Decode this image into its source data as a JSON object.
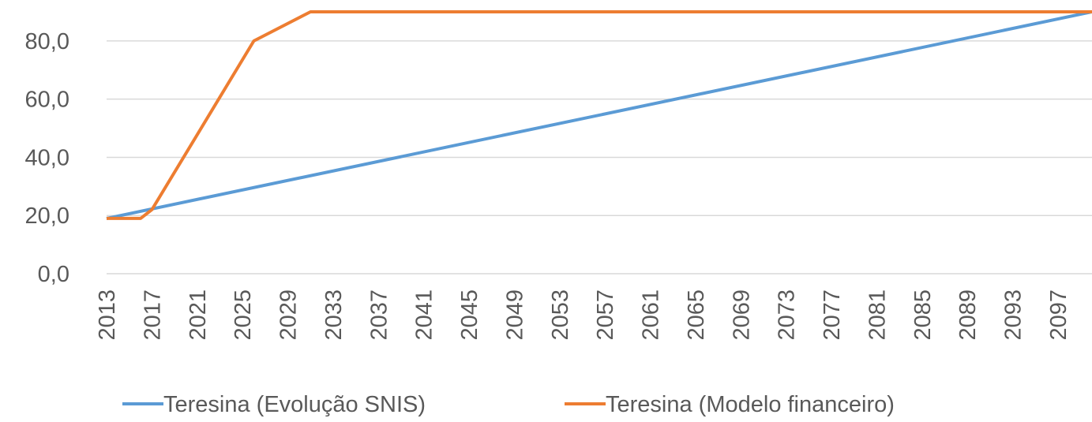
{
  "chart_data": {
    "type": "line",
    "xlim": [
      2013,
      2100
    ],
    "xticks": [
      2013,
      2017,
      2021,
      2025,
      2029,
      2033,
      2037,
      2041,
      2045,
      2049,
      2053,
      2057,
      2061,
      2065,
      2069,
      2073,
      2077,
      2081,
      2085,
      2089,
      2093,
      2097
    ],
    "ylim": [
      0,
      90
    ],
    "yticks": [
      {
        "value": 0,
        "label": "0,0"
      },
      {
        "value": 20,
        "label": "20,0"
      },
      {
        "value": 40,
        "label": "40,0"
      },
      {
        "value": 60,
        "label": "60,0"
      },
      {
        "value": 80,
        "label": "80,0"
      }
    ],
    "grid": true,
    "legend": "bottom",
    "series": [
      {
        "name": "Teresina (Evolução SNIS)",
        "color": "#5b9bd5",
        "x": [
          2013,
          2100
        ],
        "values": [
          19,
          90
        ]
      },
      {
        "name": "Teresina (Modelo financeiro)",
        "color": "#ed7d31",
        "x": [
          2013,
          2016,
          2017,
          2026,
          2031,
          2100
        ],
        "values": [
          19,
          19,
          22,
          80,
          90,
          90
        ]
      }
    ]
  }
}
